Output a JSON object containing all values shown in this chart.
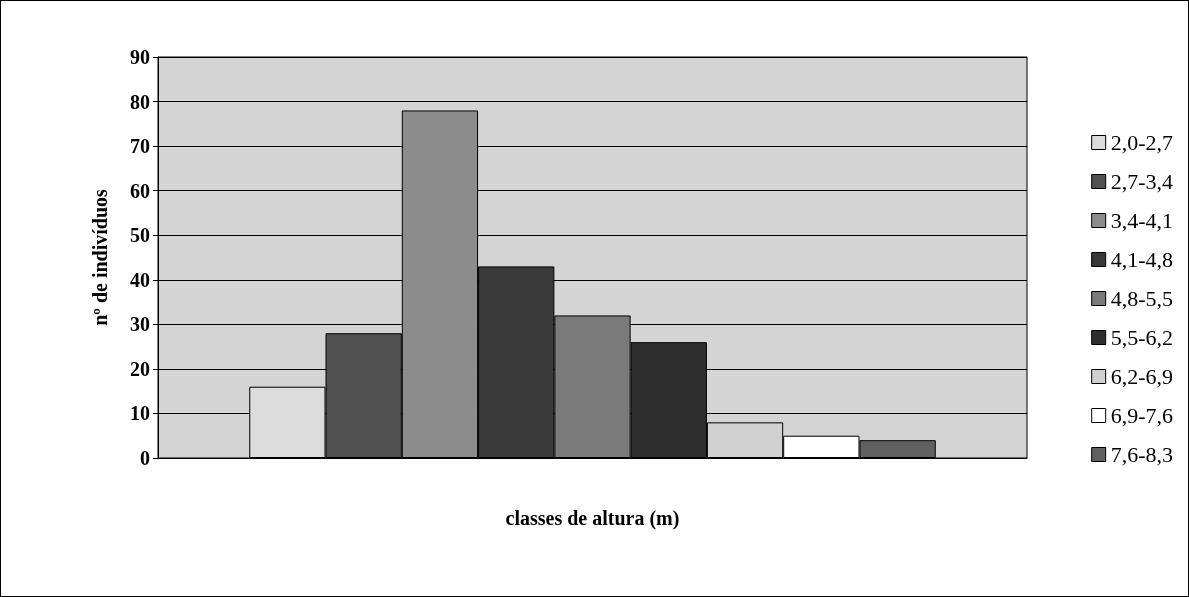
{
  "chart_data": {
    "type": "bar",
    "xlabel": "classes de altura (m)",
    "ylabel": "nº de indivíduos",
    "categories": [
      null
    ],
    "series": [
      {
        "name": "2,0-2,7",
        "color": "#dcdcdc",
        "values": [
          16
        ]
      },
      {
        "name": "2,7-3,4",
        "color": "#505050",
        "values": [
          28
        ]
      },
      {
        "name": "3,4-4,1",
        "color": "#8c8c8c",
        "values": [
          78
        ]
      },
      {
        "name": "4,1-4,8",
        "color": "#3a3a3a",
        "values": [
          43
        ]
      },
      {
        "name": "4,8-5,5",
        "color": "#7a7a7a",
        "values": [
          32
        ]
      },
      {
        "name": "5,5-6,2",
        "color": "#2e2e2e",
        "values": [
          26
        ]
      },
      {
        "name": "6,2-6,9",
        "color": "#d0d0d0",
        "values": [
          8
        ]
      },
      {
        "name": "6,9-7,6",
        "color": "#ffffff",
        "values": [
          5
        ]
      },
      {
        "name": "7,6-8,3",
        "color": "#606060",
        "values": [
          4
        ]
      }
    ],
    "ylim": [
      0,
      90
    ],
    "yticks": [
      0,
      10,
      20,
      30,
      40,
      50,
      60,
      70,
      80,
      90
    ],
    "grid": "y",
    "legend": "right"
  }
}
